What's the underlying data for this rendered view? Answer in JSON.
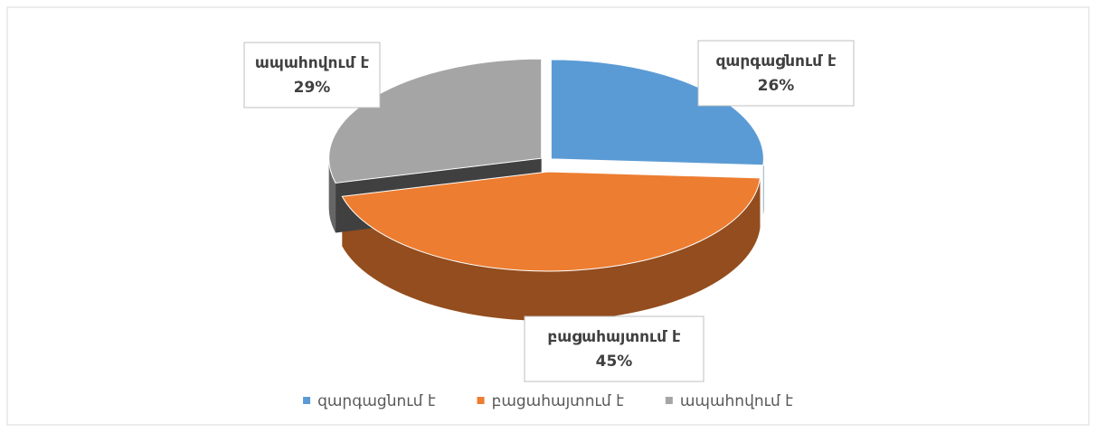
{
  "chart_data": {
    "type": "pie3d",
    "categories": [
      "զարգացնում է",
      "բացահայտում է",
      "ապահովում է"
    ],
    "values": [
      26,
      45,
      29
    ],
    "value_labels": [
      "26%",
      "45%",
      "29%"
    ],
    "colors": [
      "#5b9bd5",
      "#ed7d31",
      "#a5a5a5"
    ],
    "legend": "bottom"
  }
}
